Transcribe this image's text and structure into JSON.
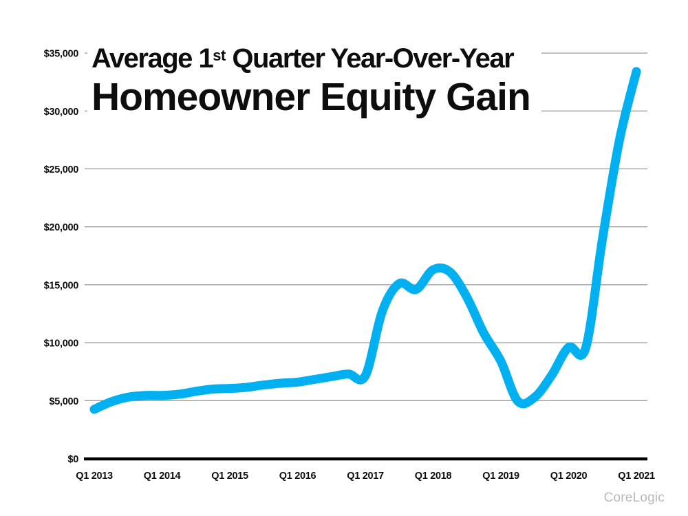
{
  "chart_data": {
    "type": "line",
    "title_line1_prefix": "Average 1",
    "title_line1_sup": "st",
    "title_line1_suffix": " Quarter Year-Over-Year",
    "title_line2": "Homeowner Equity Gain",
    "x_tick_labels": [
      "Q1 2013",
      "Q1 2014",
      "Q1 2015",
      "Q1 2016",
      "Q1 2017",
      "Q1 2018",
      "Q1 2019",
      "Q1 2020",
      "Q1 2021"
    ],
    "y_tick_labels": [
      "$0",
      "$5,000",
      "$10,000",
      "$15,000",
      "$20,000",
      "$25,000",
      "$30,000",
      "$35,000"
    ],
    "ylim": [
      0,
      35000
    ],
    "y_tick_step": 5000,
    "grid": true,
    "legend": "none",
    "line_color": "#00B0F0",
    "gridline_color": "#7f7f7f",
    "axis_color": "#000000",
    "source": "CoreLogic",
    "series": [
      {
        "name": "Average Q1 year-over-year homeowner equity gain (USD)",
        "frequency": "quarterly",
        "start": "Q1 2013",
        "end": "Q1 2021",
        "values": [
          4250,
          4900,
          5300,
          5450,
          5450,
          5550,
          5800,
          6000,
          6050,
          6150,
          6350,
          6500,
          6600,
          6830,
          7070,
          7300,
          7150,
          12700,
          15100,
          14600,
          16300,
          16100,
          13900,
          10800,
          8400,
          4950,
          5300,
          7200,
          9600,
          9500,
          19000,
          27500,
          33400
        ]
      }
    ]
  }
}
